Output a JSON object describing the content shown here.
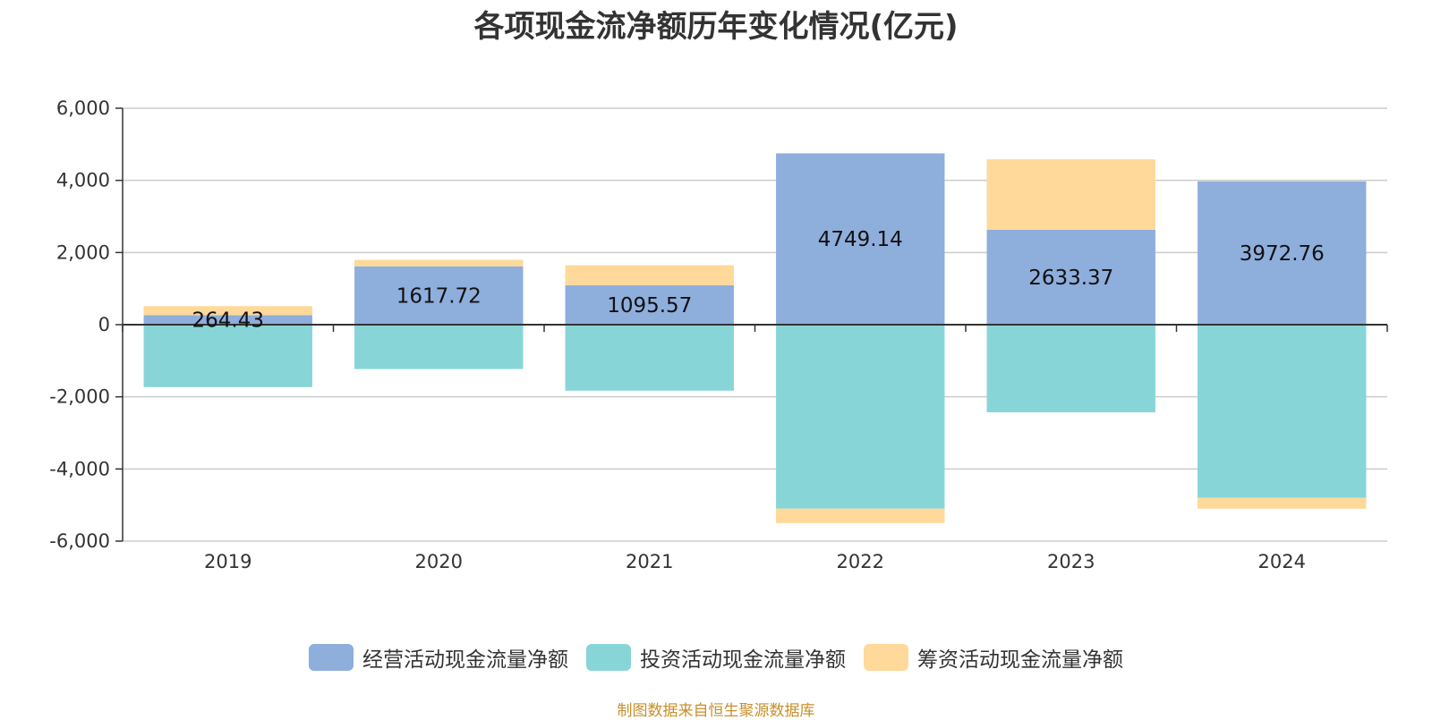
{
  "chart_data": {
    "type": "bar",
    "stacked": true,
    "title": "各项现金流净额历年变化情况(亿元)",
    "categories": [
      "2019",
      "2020",
      "2021",
      "2022",
      "2023",
      "2024"
    ],
    "ylim": [
      -6000,
      6000
    ],
    "yticks": [
      6000,
      4000,
      2000,
      0,
      -2000,
      -4000,
      -6000
    ],
    "ytick_labels": [
      "6,000",
      "4,000",
      "2,000",
      "0",
      "-2,000",
      "-4,000",
      "-6,000"
    ],
    "grid": true,
    "legend_position": "bottom",
    "series": [
      {
        "name": "经营活动现金流量净额",
        "color": "#8eaedc",
        "values": [
          264.43,
          1617.72,
          1095.57,
          4749.14,
          2633.37,
          3972.76
        ],
        "labels": [
          "264.43",
          "1617.72",
          "1095.57",
          "4749.14",
          "2633.37",
          "3972.76"
        ]
      },
      {
        "name": "投资活动现金流量净额",
        "color": "#88d5d8",
        "values": [
          -1730,
          -1230,
          -1830,
          -5100,
          -2430,
          -4800
        ]
      },
      {
        "name": "筹资活动现金流量净额",
        "color": "#fed99a",
        "values": [
          250,
          180,
          550,
          -400,
          1950,
          -300
        ]
      }
    ]
  },
  "source_note": "制图数据来自恒生聚源数据库"
}
